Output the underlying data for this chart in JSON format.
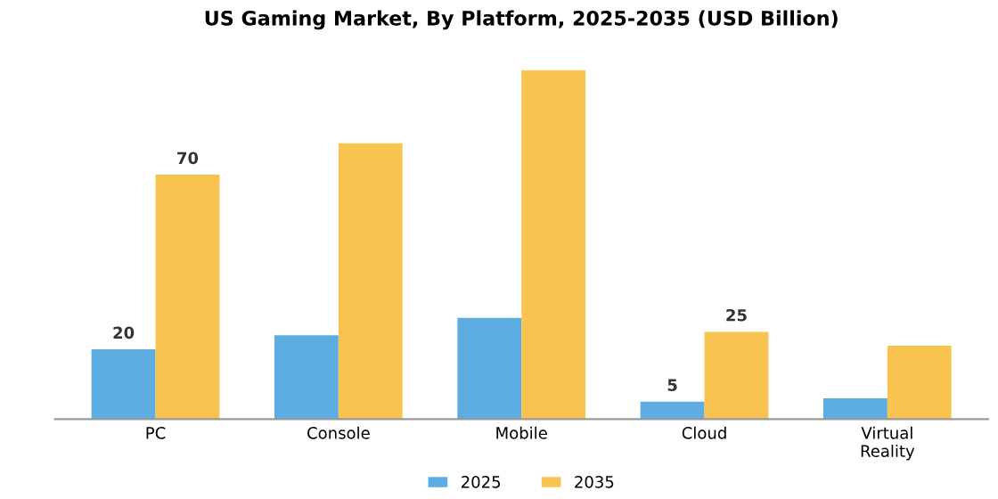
{
  "chart_data": {
    "type": "bar",
    "title": "US Gaming Market, By Platform, 2025-2035 (USD Billion)",
    "categories": [
      "PC",
      "Console",
      "Mobile",
      "Cloud",
      "Virtual\nReality"
    ],
    "series": [
      {
        "name": "2025",
        "color": "#5dade2",
        "values": [
          20,
          24,
          29,
          5,
          6
        ],
        "value_labels": [
          "20",
          null,
          null,
          "5",
          null
        ]
      },
      {
        "name": "2035",
        "color": "#f8c44f",
        "values": [
          70,
          79,
          100,
          25,
          21
        ],
        "value_labels": [
          "70",
          null,
          null,
          "25",
          null
        ]
      }
    ],
    "legend": "bottom",
    "grid": false
  }
}
